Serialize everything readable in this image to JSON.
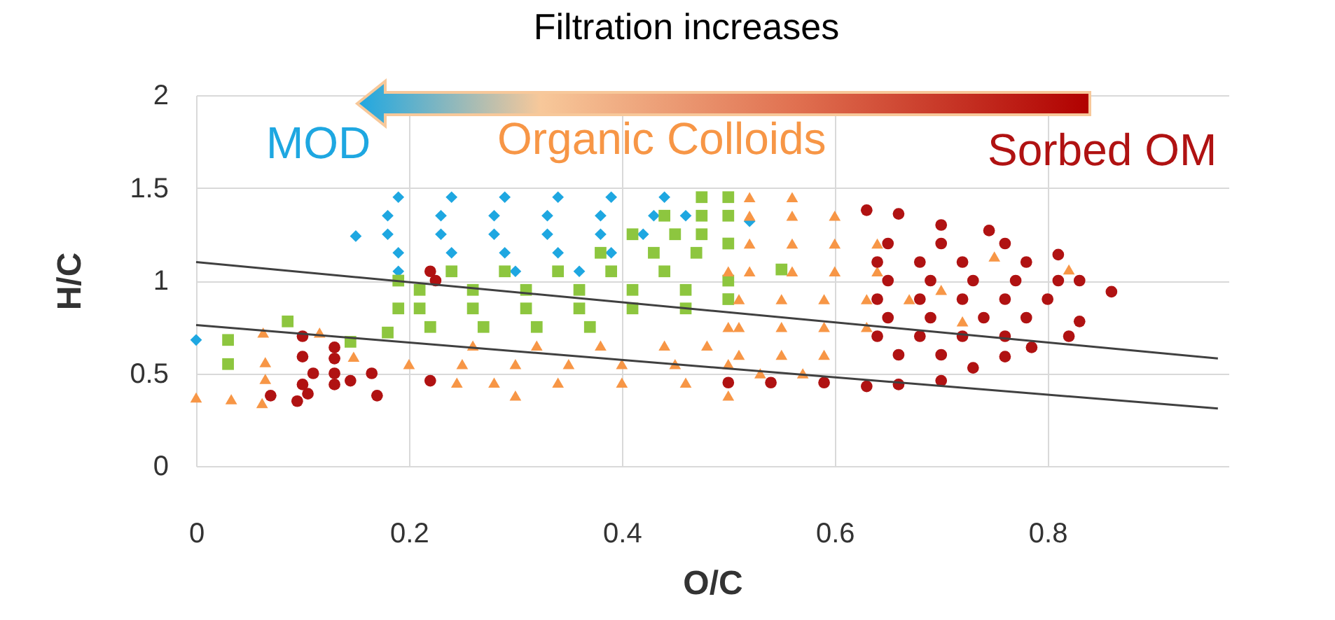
{
  "chart_data": {
    "type": "scatter",
    "xlabel": "O/C",
    "ylabel": "H/C",
    "annotations": [
      "Filtration increases"
    ],
    "xlim": [
      0,
      0.97
    ],
    "ylim": [
      0,
      2
    ],
    "xticks": [
      0,
      0.2,
      0.4,
      0.6,
      0.8
    ],
    "yticks": [
      0,
      0.5,
      1,
      1.5,
      2
    ],
    "grid": true,
    "series": [
      {
        "name": "MOD",
        "color": "#1ea7e1",
        "marker": "diamond",
        "x": [
          0.19,
          0.24,
          0.29,
          0.34,
          0.39,
          0.44,
          0.18,
          0.23,
          0.28,
          0.33,
          0.38,
          0.43,
          0.46,
          0.18,
          0.23,
          0.28,
          0.33,
          0.38,
          0.42,
          0.19,
          0.24,
          0.29,
          0.34,
          0.39,
          0.19,
          0.3,
          0.36,
          0,
          0.15,
          0.52
        ],
        "values": [
          1.45,
          1.45,
          1.45,
          1.45,
          1.45,
          1.45,
          1.35,
          1.35,
          1.35,
          1.35,
          1.35,
          1.35,
          1.35,
          1.25,
          1.25,
          1.25,
          1.25,
          1.25,
          1.25,
          1.15,
          1.15,
          1.15,
          1.15,
          1.15,
          1.05,
          1.05,
          1.05,
          0.68,
          1.24,
          1.32
        ]
      },
      {
        "color": "#8dc63f",
        "marker": "square",
        "x": [
          0.03,
          0.03,
          0.086,
          0.145,
          0.18,
          0.19,
          0.19,
          0.55,
          0.22,
          0.27,
          0.32,
          0.37,
          0.21,
          0.26,
          0.31,
          0.36,
          0.41,
          0.46,
          0.21,
          0.26,
          0.31,
          0.36,
          0.41,
          0.46,
          0.24,
          0.29,
          0.34,
          0.39,
          0.44,
          0.38,
          0.43,
          0.47,
          0.41,
          0.45,
          0.475,
          0.44,
          0.475,
          0.5,
          0.475,
          0.5,
          0.5,
          0.5,
          0.5
        ],
        "values": [
          0.68,
          0.55,
          0.78,
          0.67,
          0.72,
          1.0,
          0.85,
          1.06,
          0.75,
          0.75,
          0.75,
          0.75,
          0.85,
          0.85,
          0.85,
          0.85,
          0.85,
          0.85,
          0.95,
          0.95,
          0.95,
          0.95,
          0.95,
          0.95,
          1.05,
          1.05,
          1.05,
          1.05,
          1.05,
          1.15,
          1.15,
          1.15,
          1.25,
          1.25,
          1.25,
          1.35,
          1.35,
          1.35,
          1.45,
          1.45,
          1.2,
          1.0,
          0.9
        ]
      },
      {
        "name": "Organic Colloids",
        "color": "#f79646",
        "marker": "triangle",
        "x": [
          0,
          0.033,
          0.063,
          0.116,
          0.065,
          0.065,
          0.062,
          0.148,
          0.245,
          0.28,
          0.34,
          0.4,
          0.46,
          0.2,
          0.25,
          0.3,
          0.35,
          0.4,
          0.45,
          0.5,
          0.26,
          0.32,
          0.38,
          0.44,
          0.48,
          0.3,
          0.5,
          0.52,
          0.56,
          0.52,
          0.56,
          0.6,
          0.52,
          0.56,
          0.6,
          0.64,
          0.52,
          0.56,
          0.6,
          0.64,
          0.51,
          0.55,
          0.59,
          0.63,
          0.67,
          0.51,
          0.55,
          0.59,
          0.63,
          0.51,
          0.55,
          0.59,
          0.53,
          0.57,
          0.5,
          0.5,
          0.75,
          0.82,
          0.72,
          0.7
        ],
        "values": [
          0.37,
          0.36,
          0.72,
          0.72,
          0.56,
          0.47,
          0.34,
          0.59,
          0.45,
          0.45,
          0.45,
          0.45,
          0.45,
          0.55,
          0.55,
          0.55,
          0.55,
          0.55,
          0.55,
          0.55,
          0.65,
          0.65,
          0.65,
          0.65,
          0.65,
          0.38,
          0.38,
          1.45,
          1.45,
          1.35,
          1.35,
          1.35,
          1.2,
          1.2,
          1.2,
          1.2,
          1.05,
          1.05,
          1.05,
          1.05,
          0.9,
          0.9,
          0.9,
          0.9,
          0.9,
          0.75,
          0.75,
          0.75,
          0.75,
          0.6,
          0.6,
          0.6,
          0.5,
          0.5,
          1.05,
          0.75,
          1.13,
          1.06,
          0.78,
          0.95
        ]
      },
      {
        "name": "Sorbed OM",
        "color": "#b01212",
        "marker": "circle",
        "x": [
          0.1,
          0.1,
          0.11,
          0.1,
          0.105,
          0.095,
          0.07,
          0.13,
          0.13,
          0.13,
          0.13,
          0.145,
          0.165,
          0.17,
          0.22,
          0.22,
          0.225,
          0.5,
          0.54,
          0.59,
          0.63,
          0.66,
          0.7,
          0.745,
          0.76,
          0.81,
          0.83,
          0.86,
          0.83,
          0.82,
          0.785,
          0.76,
          0.73,
          0.7,
          0.66,
          0.63,
          0.65,
          0.7,
          0.64,
          0.68,
          0.72,
          0.78,
          0.65,
          0.69,
          0.73,
          0.77,
          0.81,
          0.64,
          0.68,
          0.72,
          0.76,
          0.8,
          0.65,
          0.69,
          0.74,
          0.78,
          0.64,
          0.68,
          0.72,
          0.76,
          0.66,
          0.7
        ],
        "values": [
          0.7,
          0.59,
          0.5,
          0.44,
          0.39,
          0.35,
          0.38,
          0.64,
          0.58,
          0.5,
          0.44,
          0.46,
          0.5,
          0.38,
          0.46,
          1.05,
          1.0,
          0.45,
          0.45,
          0.45,
          1.38,
          1.36,
          1.3,
          1.27,
          1.2,
          1.14,
          1.0,
          0.94,
          0.78,
          0.7,
          0.64,
          0.59,
          0.53,
          0.46,
          0.44,
          0.43,
          1.2,
          1.2,
          1.1,
          1.1,
          1.1,
          1.1,
          1.0,
          1.0,
          1.0,
          1.0,
          1.0,
          0.9,
          0.9,
          0.9,
          0.9,
          0.9,
          0.8,
          0.8,
          0.8,
          0.8,
          0.7,
          0.7,
          0.7,
          0.7,
          0.6,
          0.6
        ]
      },
      {
        "type": "line",
        "color": "#404040",
        "x": [
          0,
          0.96
        ],
        "values": [
          1.1,
          0.58
        ]
      },
      {
        "type": "line",
        "color": "#404040",
        "x": [
          0,
          0.96
        ],
        "values": [
          0.76,
          0.31
        ]
      }
    ]
  }
}
